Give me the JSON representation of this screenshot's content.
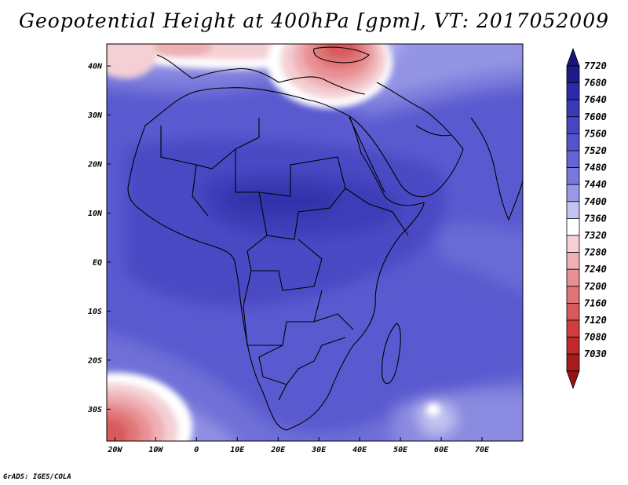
{
  "title": "Geopotential Height at 400hPa [gpm], VT: 2017052009",
  "credit": "GrADS: IGES/COLA",
  "map": {
    "lon_range": [
      -22,
      80
    ],
    "lat_range": [
      -36.5,
      44.5
    ],
    "lon_ticks": [
      {
        "lon": -20,
        "label": "20W"
      },
      {
        "lon": -10,
        "label": "10W"
      },
      {
        "lon": 0,
        "label": "0"
      },
      {
        "lon": 10,
        "label": "10E"
      },
      {
        "lon": 20,
        "label": "20E"
      },
      {
        "lon": 30,
        "label": "30E"
      },
      {
        "lon": 40,
        "label": "40E"
      },
      {
        "lon": 50,
        "label": "50E"
      },
      {
        "lon": 60,
        "label": "60E"
      },
      {
        "lon": 70,
        "label": "70E"
      }
    ],
    "lat_ticks": [
      {
        "lat": 40,
        "label": "40N"
      },
      {
        "lat": 30,
        "label": "30N"
      },
      {
        "lat": 20,
        "label": "20N"
      },
      {
        "lat": 10,
        "label": "10N"
      },
      {
        "lat": 0,
        "label": "EQ"
      },
      {
        "lat": -10,
        "label": "10S"
      },
      {
        "lat": -20,
        "label": "20S"
      },
      {
        "lat": -30,
        "label": "30S"
      }
    ]
  },
  "colorbar": {
    "levels": [
      {
        "label": "7720",
        "color": "#1e1a8c"
      },
      {
        "label": "7680",
        "color": "#2a2aa8"
      },
      {
        "label": "7640",
        "color": "#3a3ab8"
      },
      {
        "label": "7600",
        "color": "#4646c4"
      },
      {
        "label": "7560",
        "color": "#5454cc"
      },
      {
        "label": "7520",
        "color": "#6464d4"
      },
      {
        "label": "7480",
        "color": "#7878dc"
      },
      {
        "label": "7440",
        "color": "#9898e6"
      },
      {
        "label": "7400",
        "color": "#c4c4f2"
      },
      {
        "label": "7360",
        "color": "#ffffff"
      },
      {
        "label": "7320",
        "color": "#f4d0d4"
      },
      {
        "label": "7280",
        "color": "#eeb0b4"
      },
      {
        "label": "7240",
        "color": "#e89094"
      },
      {
        "label": "7200",
        "color": "#e07476"
      },
      {
        "label": "7160",
        "color": "#d85a5c"
      },
      {
        "label": "7120",
        "color": "#d03e40"
      },
      {
        "label": "7080",
        "color": "#c02a2c"
      },
      {
        "label": "7030",
        "color": "#a81c1e"
      }
    ],
    "top_color": "#1a1478",
    "bottom_color": "#961416"
  }
}
